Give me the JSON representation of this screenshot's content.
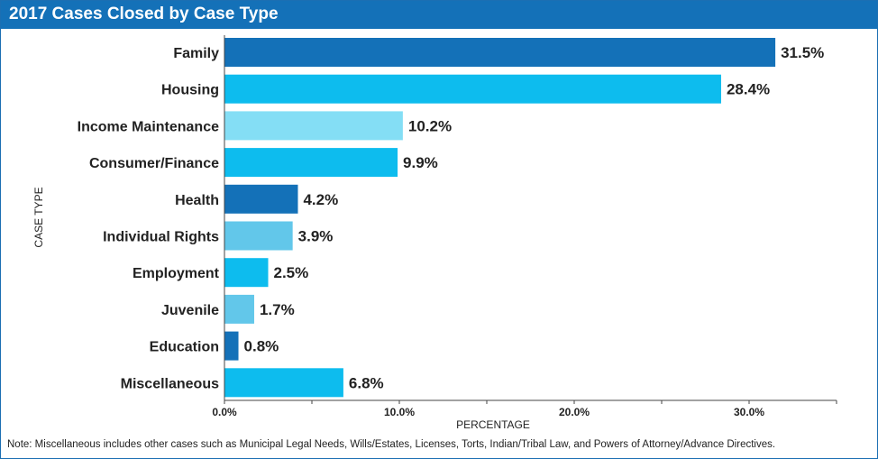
{
  "title": "2017 Cases Closed by Case Type",
  "note": "Note: Miscellaneous includes other cases such as Municipal Legal Needs, Wills/Estates, Licenses, Torts, Indian/Tribal Law, and Powers of Attorney/Advance Directives.",
  "colors": {
    "title_bar": "#1471b8",
    "dark_blue": "#1471b8",
    "cyan": "#0dbcee",
    "light_blue": "#84def5",
    "mid_blue": "#62c7ea"
  },
  "chart_data": {
    "type": "bar",
    "orientation": "horizontal",
    "xlabel": "PERCENTAGE",
    "ylabel": "CASE TYPE",
    "xlim": [
      0,
      35
    ],
    "xticks": [
      0,
      10,
      20,
      30
    ],
    "xtick_labels": [
      "0.0%",
      "10.0%",
      "20.0%",
      "30.0%"
    ],
    "categories": [
      "Family",
      "Housing",
      "Income Maintenance",
      "Consumer/Finance",
      "Health",
      "Individual Rights",
      "Employment",
      "Juvenile",
      "Education",
      "Miscellaneous"
    ],
    "values": [
      31.5,
      28.4,
      10.2,
      9.9,
      4.2,
      3.9,
      2.5,
      1.7,
      0.8,
      6.8
    ],
    "value_labels": [
      "31.5%",
      "28.4%",
      "10.2%",
      "9.9%",
      "4.2%",
      "3.9%",
      "2.5%",
      "1.7%",
      "0.8%",
      "6.8%"
    ],
    "bar_colors": [
      "#1471b8",
      "#0dbcee",
      "#84def5",
      "#0dbcee",
      "#1471b8",
      "#62c7ea",
      "#0dbcee",
      "#62c7ea",
      "#1471b8",
      "#0dbcee"
    ],
    "grid": false,
    "legend": "none"
  }
}
